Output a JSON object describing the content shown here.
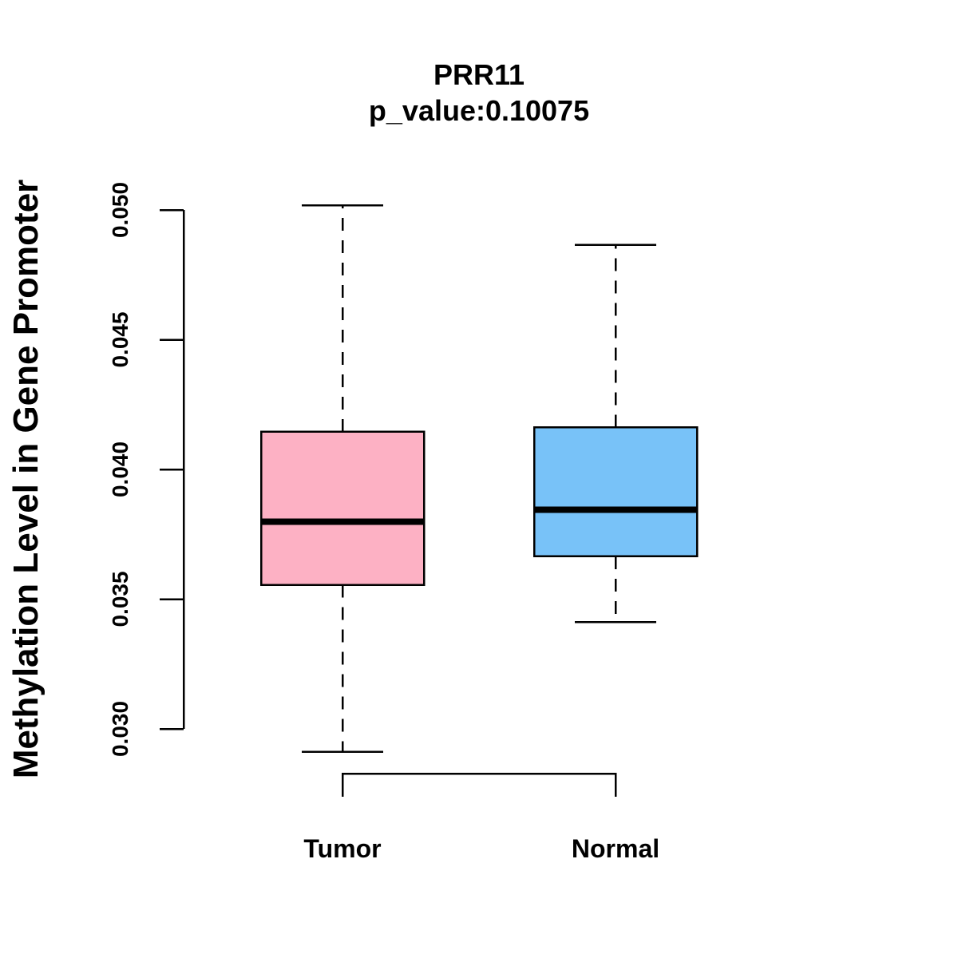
{
  "chart_data": {
    "type": "boxplot",
    "title": "PRR11",
    "subtitle": "p_value:0.10075",
    "xlabel": "",
    "ylabel": "Methylation Level in Gene Promoter",
    "ylim": [
      0.03,
      0.05
    ],
    "yticks": [
      0.03,
      0.035,
      0.04,
      0.045,
      0.05
    ],
    "ytick_labels": [
      "0.030",
      "0.035",
      "0.040",
      "0.045",
      "0.050"
    ],
    "categories": [
      "Tumor",
      "Normal"
    ],
    "series": [
      {
        "name": "Tumor",
        "color": "#FDB1C4",
        "whisker_low": 0.02912,
        "q1": 0.03555,
        "median": 0.03798,
        "q3": 0.04145,
        "whisker_high": 0.05017
      },
      {
        "name": "Normal",
        "color": "#78C2F8",
        "whisker_low": 0.03412,
        "q1": 0.03665,
        "median": 0.03845,
        "q3": 0.04162,
        "whisker_high": 0.04865
      }
    ],
    "comparison_bracket": [
      "Tumor",
      "Normal"
    ],
    "grid": false
  }
}
